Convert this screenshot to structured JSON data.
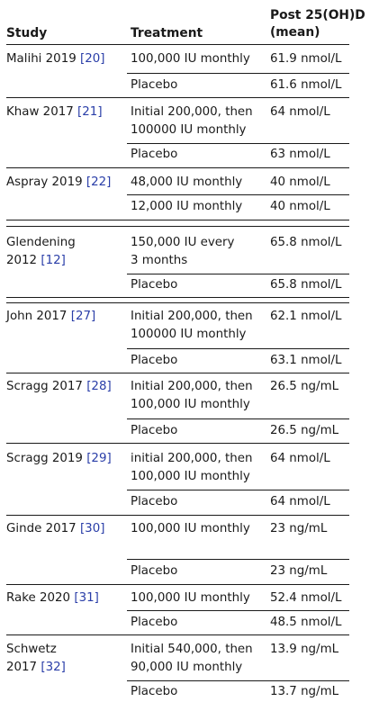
{
  "header": {
    "study": "Study",
    "treatment": "Treatment",
    "post_line1": "Post 25(OH)D",
    "post_line2": "(mean)"
  },
  "rows": [
    {
      "study": "Malihi 2019",
      "ref": "20",
      "arms": [
        {
          "treatment": [
            "100,000 IU monthly"
          ],
          "post": "61.9 nmol/L"
        },
        {
          "treatment": [
            "Placebo"
          ],
          "post": "61.6 nmol/L"
        }
      ]
    },
    {
      "study": "Khaw 2017",
      "ref": "21",
      "arms": [
        {
          "treatment": [
            "Initial 200,000, then",
            "100000 IU monthly"
          ],
          "post": "64 nmol/L"
        },
        {
          "treatment": [
            "Placebo"
          ],
          "post": "63 nmol/L"
        }
      ]
    },
    {
      "study": "Aspray 2019",
      "ref": "22",
      "arms": [
        {
          "treatment": [
            "48,000 IU monthly"
          ],
          "post": "40 nmol/L"
        },
        {
          "treatment": [
            "12,000 IU monthly"
          ],
          "post": "40 nmol/L"
        }
      ]
    },
    {
      "study": "Glendening",
      "study2": "2012",
      "ref": "12",
      "arms": [
        {
          "treatment": [
            "150,000 IU every",
            "3 months"
          ],
          "post": "65.8 nmol/L"
        },
        {
          "treatment": [
            "Placebo"
          ],
          "post": "65.8 nmol/L"
        }
      ]
    },
    {
      "study": "John 2017",
      "ref": "27",
      "arms": [
        {
          "treatment": [
            "Initial 200,000, then",
            "100000 IU monthly"
          ],
          "post": "62.1 nmol/L"
        },
        {
          "treatment": [
            "Placebo"
          ],
          "post": "63.1 nmol/L"
        }
      ]
    },
    {
      "study": "Scragg 2017",
      "ref": "28",
      "arms": [
        {
          "treatment": [
            "Initial 200,000, then",
            "100,000 IU monthly"
          ],
          "post": "26.5 ng/mL"
        },
        {
          "treatment": [
            "Placebo"
          ],
          "post": "26.5 ng/mL"
        }
      ]
    },
    {
      "study": "Scragg 2019",
      "ref": "29",
      "arms": [
        {
          "treatment": [
            "initial 200,000, then",
            "100,000 IU monthly"
          ],
          "post": "64 nmol/L"
        },
        {
          "treatment": [
            "Placebo"
          ],
          "post": "64 nmol/L"
        }
      ]
    },
    {
      "study": "Ginde 2017",
      "ref": "30",
      "arms": [
        {
          "treatment": [
            "100,000 IU monthly"
          ],
          "post": "23 ng/mL"
        },
        {
          "treatment": [
            "Placebo"
          ],
          "post": "23 ng/mL"
        }
      ]
    },
    {
      "study": "Rake 2020",
      "ref": "31",
      "arms": [
        {
          "treatment": [
            "100,000 IU monthly"
          ],
          "post": "52.4 nmol/L"
        },
        {
          "treatment": [
            "Placebo"
          ],
          "post": "48.5 nmol/L"
        }
      ]
    },
    {
      "study": "Schwetz",
      "study2": "2017",
      "ref": "32",
      "arms": [
        {
          "treatment": [
            "Initial 540,000, then",
            "90,000 IU monthly"
          ],
          "post": "13.9 ng/mL"
        },
        {
          "treatment": [
            "Placebo"
          ],
          "post": "13.7 ng/mL"
        }
      ]
    }
  ]
}
